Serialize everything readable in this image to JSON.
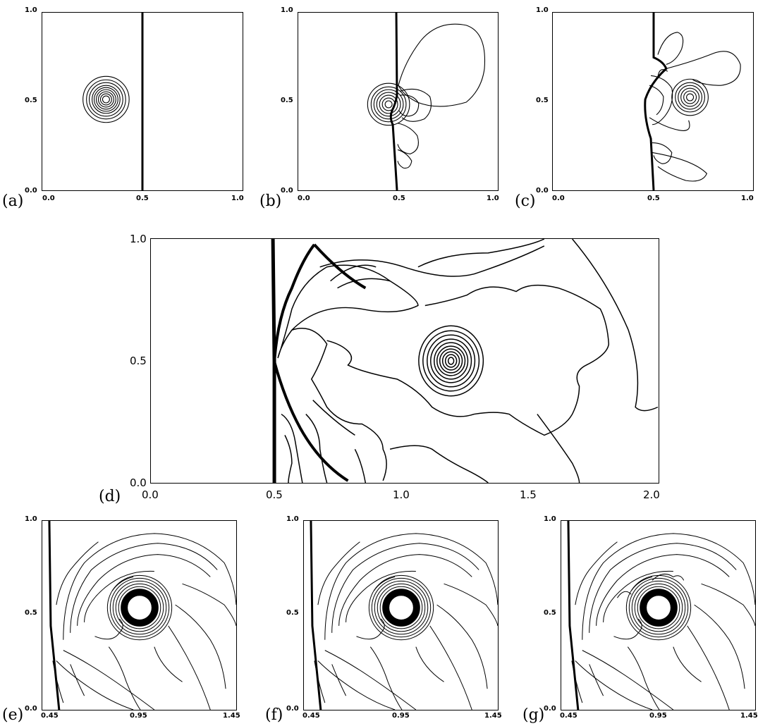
{
  "panels": [
    {
      "label": "(a)",
      "xticks": [
        "0.0",
        "0.5",
        "1.0"
      ],
      "yticks": [
        "1.0",
        "0.5",
        "0.0"
      ]
    },
    {
      "label": "(b)",
      "xticks": [
        "0.0",
        "0.5",
        "1.0"
      ],
      "yticks": [
        "1.0",
        "0.5",
        "0.0"
      ]
    },
    {
      "label": "(c)",
      "xticks": [
        "0.0",
        "0.5",
        "1.0"
      ],
      "yticks": [
        "1.0",
        "0.5",
        "0.0"
      ]
    },
    {
      "label": "(d)",
      "xticks": [
        "0.0",
        "0.5",
        "1.0",
        "1.5",
        "2.0"
      ],
      "yticks": [
        "1.0",
        "0.5",
        "0.0"
      ]
    },
    {
      "label": "(e)",
      "xticks": [
        "0.45",
        "0.95",
        "1.45"
      ],
      "yticks": [
        "1.0",
        "0.5",
        "0.0"
      ]
    },
    {
      "label": "(f)",
      "xticks": [
        "0.45",
        "0.95",
        "1.45"
      ],
      "yticks": [
        "1.0",
        "0.5",
        "0.0"
      ]
    },
    {
      "label": "(g)",
      "xticks": [
        "0.45",
        "0.95",
        "1.45"
      ],
      "yticks": [
        "1.0",
        "0.5",
        "0.0"
      ]
    }
  ]
}
